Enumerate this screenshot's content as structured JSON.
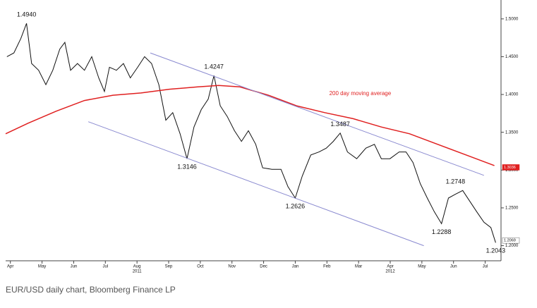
{
  "chart_data": {
    "type": "line",
    "caption": "EUR/USD daily chart, Bloomberg Finance LP",
    "xlim": [
      -0.15,
      15.5
    ],
    "ylim": [
      1.18,
      1.525
    ],
    "xticks": [
      {
        "value": 0,
        "label": "Apr"
      },
      {
        "value": 1,
        "label": "May"
      },
      {
        "value": 2,
        "label": "Jun"
      },
      {
        "value": 3,
        "label": "Jul"
      },
      {
        "value": 4,
        "label": "Aug"
      },
      {
        "value": 5,
        "label": "Sep"
      },
      {
        "value": 6,
        "label": "Oct"
      },
      {
        "value": 7,
        "label": "Nov"
      },
      {
        "value": 8,
        "label": "Dec"
      },
      {
        "value": 9,
        "label": "Jan"
      },
      {
        "value": 10,
        "label": "Feb"
      },
      {
        "value": 11,
        "label": "Mar"
      },
      {
        "value": 12,
        "label": "Apr"
      },
      {
        "value": 13,
        "label": "May"
      },
      {
        "value": 14,
        "label": "Jun"
      },
      {
        "value": 15,
        "label": "Jul"
      }
    ],
    "year_ticks": [
      {
        "value": 4,
        "label": "2011"
      },
      {
        "value": 12,
        "label": "2012"
      }
    ],
    "yticks": [
      {
        "value": 1.2,
        "label": "1.2000"
      },
      {
        "value": 1.25,
        "label": "1.2500"
      },
      {
        "value": 1.3,
        "label": "1.3000"
      },
      {
        "value": 1.35,
        "label": "1.3500"
      },
      {
        "value": 1.4,
        "label": "1.4000"
      },
      {
        "value": 1.45,
        "label": "1.4500"
      },
      {
        "value": 1.5,
        "label": "1.5000"
      }
    ],
    "series": [
      {
        "name": "EUR/USD",
        "color": "#111111",
        "x": [
          -0.11,
          0.11,
          0.33,
          0.51,
          0.67,
          0.89,
          1.12,
          1.34,
          1.56,
          1.72,
          1.9,
          2.12,
          2.34,
          2.57,
          2.79,
          2.97,
          3.13,
          3.35,
          3.57,
          3.79,
          4.02,
          4.24,
          4.46,
          4.69,
          4.91,
          5.13,
          5.36,
          5.58,
          5.8,
          6.03,
          6.25,
          6.43,
          6.63,
          6.85,
          7.08,
          7.3,
          7.52,
          7.75,
          7.97,
          8.26,
          8.55,
          8.77,
          9.0,
          9.22,
          9.49,
          9.75,
          9.98,
          10.2,
          10.42,
          10.65,
          10.94,
          11.23,
          11.5,
          11.72,
          11.99,
          12.28,
          12.5,
          12.72,
          12.95,
          13.17,
          13.39,
          13.62,
          13.84,
          14.06,
          14.29,
          14.51,
          14.73,
          14.96,
          15.18,
          15.33
        ],
        "values": [
          1.45,
          1.455,
          1.474,
          1.494,
          1.441,
          1.432,
          1.413,
          1.432,
          1.46,
          1.469,
          1.432,
          1.441,
          1.432,
          1.45,
          1.422,
          1.404,
          1.436,
          1.432,
          1.441,
          1.422,
          1.436,
          1.45,
          1.441,
          1.413,
          1.366,
          1.376,
          1.348,
          1.315,
          1.357,
          1.38,
          1.394,
          1.425,
          1.385,
          1.371,
          1.352,
          1.338,
          1.352,
          1.334,
          1.303,
          1.301,
          1.301,
          1.278,
          1.263,
          1.292,
          1.32,
          1.324,
          1.329,
          1.338,
          1.349,
          1.324,
          1.315,
          1.329,
          1.334,
          1.315,
          1.315,
          1.324,
          1.324,
          1.31,
          1.282,
          1.263,
          1.245,
          1.229,
          1.263,
          1.268,
          1.273,
          1.259,
          1.245,
          1.231,
          1.224,
          1.204
        ],
        "last_label": {
          "value": 1.2069,
          "label": "1.2069"
        }
      },
      {
        "name": "200 day moving average",
        "color": "#e02020",
        "x": [
          -0.15,
          0.56,
          1.45,
          2.34,
          3.24,
          4.13,
          5.02,
          5.92,
          6.58,
          7.25,
          8.15,
          9.04,
          9.93,
          10.83,
          11.72,
          12.61,
          13.5,
          14.4,
          15.29
        ],
        "values": [
          1.348,
          1.362,
          1.378,
          1.392,
          1.399,
          1.402,
          1.407,
          1.41,
          1.412,
          1.41,
          1.399,
          1.385,
          1.376,
          1.368,
          1.357,
          1.348,
          1.334,
          1.32,
          1.306
        ],
        "last_label": {
          "value": 1.3036,
          "label": "1.3036"
        }
      },
      {
        "color": "#8a8ad0",
        "x": [
          4.42,
          14.96
        ],
        "values": [
          1.455,
          1.293
        ]
      },
      {
        "color": "#8a8ad0",
        "x": [
          2.46,
          13.06
        ],
        "values": [
          1.364,
          1.2
        ]
      }
    ],
    "annotations": [
      {
        "text": "1.4940",
        "x": 0.51,
        "y": 1.494,
        "position": "above",
        "color": "#111111"
      },
      {
        "text": "1.4247",
        "x": 6.43,
        "y": 1.425,
        "position": "above",
        "color": "#111111"
      },
      {
        "text": "1.3146",
        "x": 5.58,
        "y": 1.315,
        "position": "below",
        "color": "#111111"
      },
      {
        "text": "1.2626",
        "x": 9.0,
        "y": 1.263,
        "position": "below",
        "color": "#111111"
      },
      {
        "text": "1.3487",
        "x": 10.42,
        "y": 1.349,
        "position": "above",
        "color": "#111111"
      },
      {
        "text": "1.2748",
        "x": 14.06,
        "y": 1.273,
        "position": "above",
        "color": "#111111"
      },
      {
        "text": "1.2288",
        "x": 13.62,
        "y": 1.229,
        "position": "below",
        "color": "#111111"
      },
      {
        "text": "1.2043",
        "x": 15.33,
        "y": 1.204,
        "position": "below",
        "color": "#111111"
      },
      {
        "text": "200 day moving average",
        "x": 11.05,
        "y": 1.401,
        "position": "at",
        "color": "#e02020"
      }
    ]
  }
}
